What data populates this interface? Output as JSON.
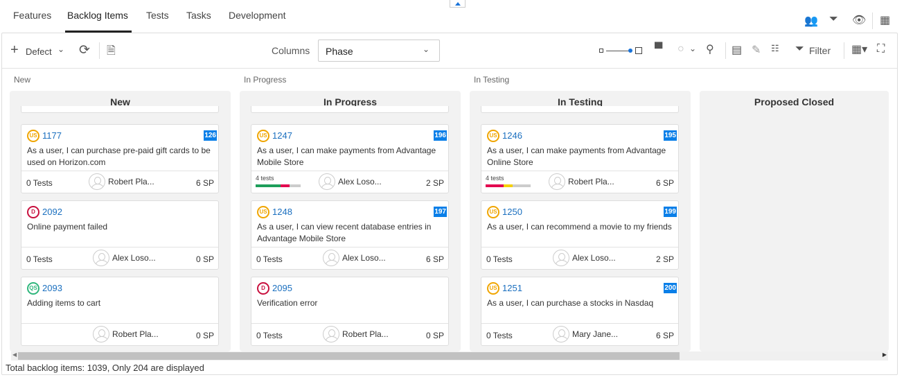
{
  "tabs": [
    "Features",
    "Backlog Items",
    "Tests",
    "Tasks",
    "Development"
  ],
  "active_tab": 1,
  "top_icons": [
    "team-icon",
    "filter-icon",
    "eye-icon",
    "grid-icon"
  ],
  "toolbar": {
    "add_label": "Defect",
    "columns_label": "Columns",
    "columns_value": "Phase",
    "filter_label": "Filter"
  },
  "groups": [
    "New",
    "In Progress",
    "In Testing"
  ],
  "columns": [
    {
      "title": "New",
      "cards": [
        {
          "type": "US",
          "id": "1177",
          "rank": "126",
          "text": "As a user, I can purchase pre-paid gift cards to be used on Horizon.com",
          "tests": "0 Tests",
          "owner": "Robert Pla...",
          "sp": "6 SP"
        },
        {
          "type": "D",
          "id": "2092",
          "text": "Online payment failed",
          "tests": "0 Tests",
          "owner": "Alex Loso...",
          "sp": "0 SP"
        },
        {
          "type": "QS",
          "id": "2093",
          "text": "Adding items to cart",
          "tests": "",
          "owner": "Robert Pla...",
          "sp": "0 SP"
        }
      ]
    },
    {
      "title": "In Progress",
      "cards": [
        {
          "type": "US",
          "id": "1247",
          "rank": "196",
          "text": "As a user, I can make payments from Advantage Mobile Store",
          "test_label": "4 tests",
          "test_bar": [
            {
              "pct": 55,
              "color": "#1e9e5a"
            },
            {
              "pct": 20,
              "color": "#e3004f"
            }
          ],
          "owner": "Alex Loso...",
          "sp": "2 SP"
        },
        {
          "type": "US",
          "id": "1248",
          "rank": "197",
          "text": "As a user, I can view recent database entries in Advantage Mobile Store",
          "tests": "0 Tests",
          "owner": "Alex Loso...",
          "sp": "6 SP"
        },
        {
          "type": "D",
          "id": "2095",
          "text": "Verification error",
          "tests": "0 Tests",
          "owner": "Robert Pla...",
          "sp": "0 SP"
        }
      ]
    },
    {
      "title": "In Testing",
      "cards": [
        {
          "type": "US",
          "id": "1246",
          "rank": "195",
          "text": "As a user, I can make payments from Advantage Online Store",
          "test_label": "4 tests",
          "test_bar": [
            {
              "pct": 40,
              "color": "#e3004f"
            },
            {
              "pct": 20,
              "color": "#f5d000"
            }
          ],
          "owner": "Robert Pla...",
          "sp": "6 SP"
        },
        {
          "type": "US",
          "id": "1250",
          "rank": "199",
          "text": "As a user, I can recommend a movie to my friends",
          "tests": "0 Tests",
          "owner": "Alex Loso...",
          "sp": "2 SP"
        },
        {
          "type": "US",
          "id": "1251",
          "rank": "200",
          "text": "As a user, I can purchase a stocks in Nasdaq",
          "tests": "0 Tests",
          "owner": "Mary Jane...",
          "sp": "6 SP"
        }
      ]
    },
    {
      "title": "Proposed Closed",
      "cards": []
    }
  ],
  "badge_colors": {
    "US": "#f0a500",
    "D": "#c8103e",
    "QS": "#2fb67c"
  },
  "footer": "Total backlog items: 1039, Only 204 are displayed"
}
